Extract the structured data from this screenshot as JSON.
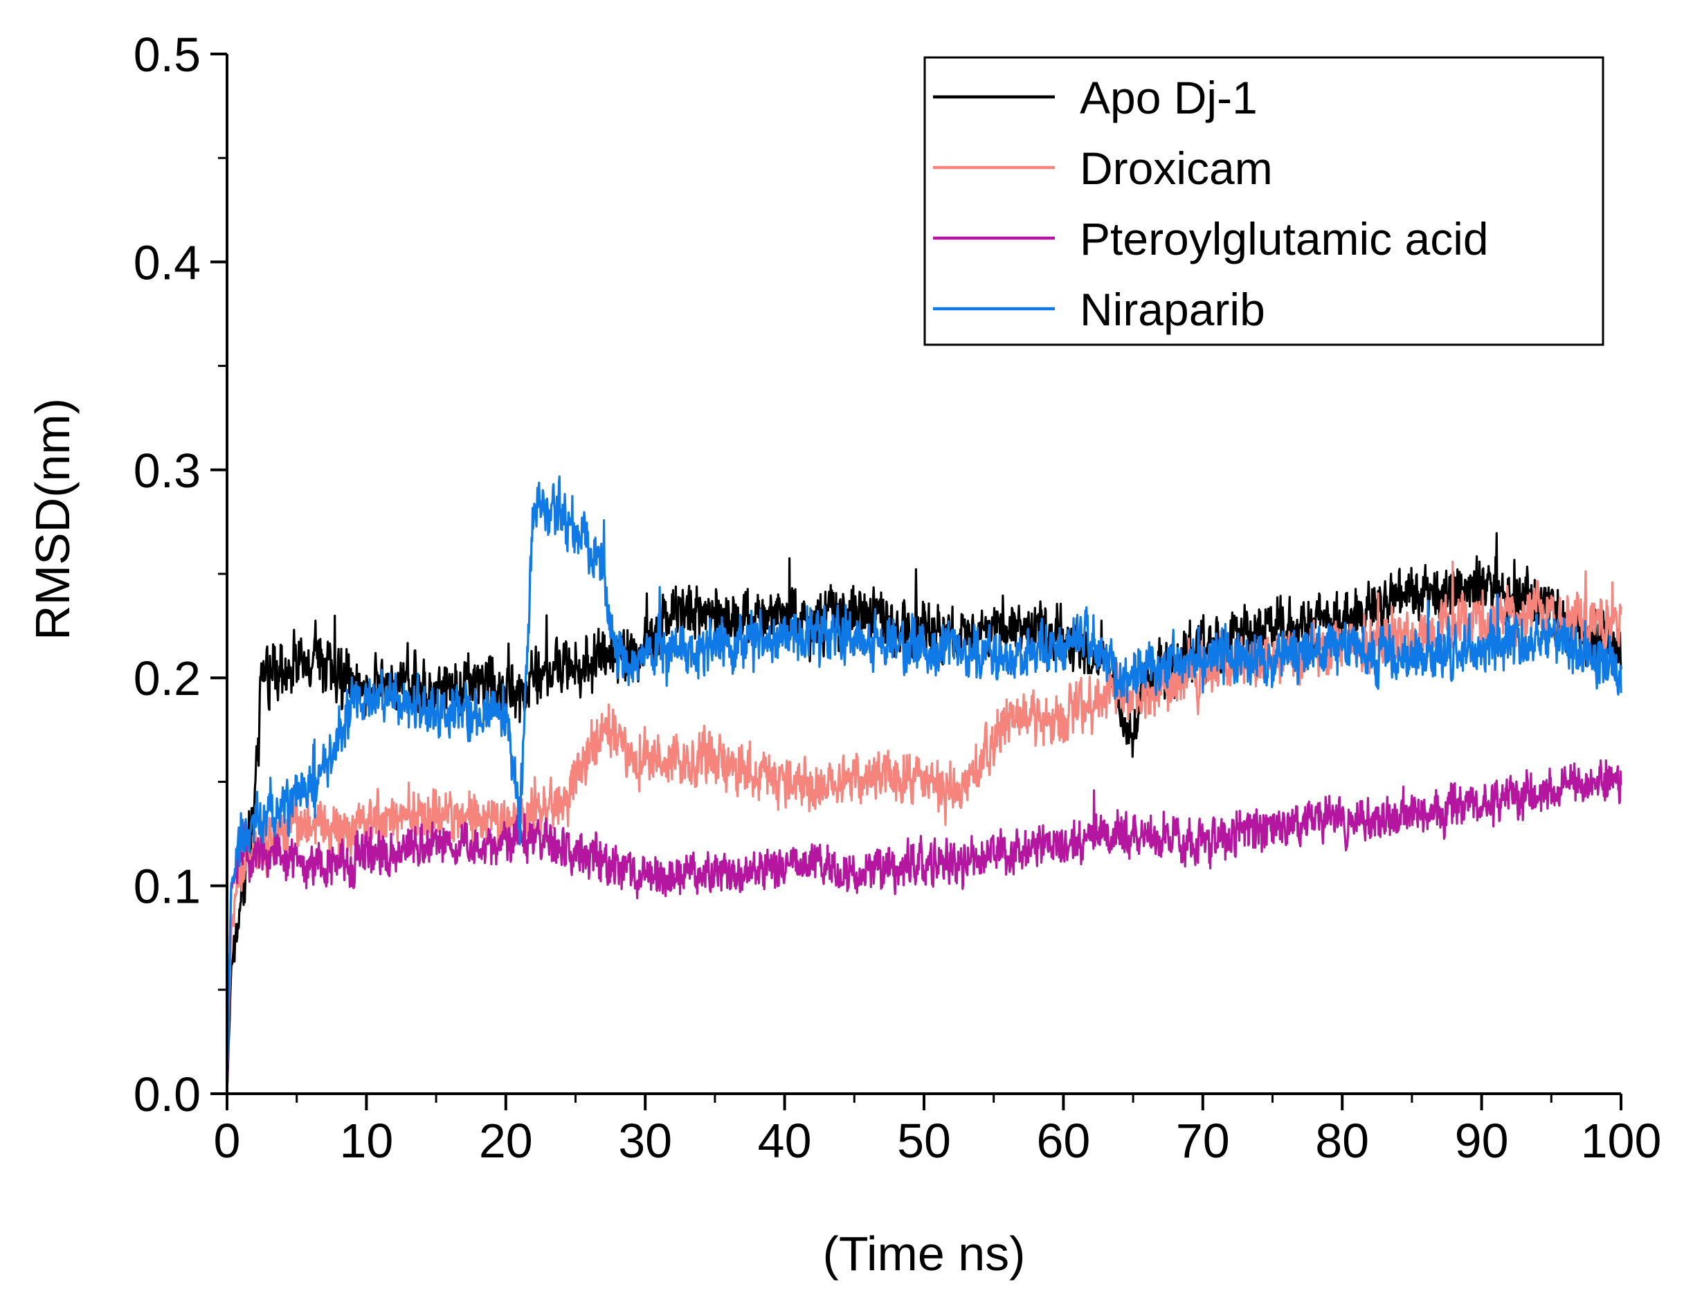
{
  "chart_data": {
    "type": "line",
    "title": "",
    "xlabel": "(Time ns)",
    "ylabel": "RMSD(nm)",
    "xlim": [
      0,
      100
    ],
    "ylim": [
      0,
      0.5
    ],
    "x_ticks": [
      "0",
      "10",
      "20",
      "30",
      "40",
      "50",
      "60",
      "70",
      "80",
      "90",
      "100"
    ],
    "y_ticks": [
      "0.0",
      "0.1",
      "0.2",
      "0.3",
      "0.4",
      "0.5"
    ],
    "legend_position": "top-right",
    "grid": false,
    "series": [
      {
        "name": "Apo Dj-1",
        "color": "#000000",
        "noise": 0.014,
        "points": [
          [
            0,
            0.0
          ],
          [
            0.3,
            0.06
          ],
          [
            1,
            0.095
          ],
          [
            2,
            0.14
          ],
          [
            2.5,
            0.2
          ],
          [
            4,
            0.205
          ],
          [
            6,
            0.21
          ],
          [
            8,
            0.2
          ],
          [
            10,
            0.195
          ],
          [
            12,
            0.2
          ],
          [
            15,
            0.195
          ],
          [
            18,
            0.2
          ],
          [
            20,
            0.195
          ],
          [
            21,
            0.19
          ],
          [
            22,
            0.2
          ],
          [
            25,
            0.205
          ],
          [
            27,
            0.21
          ],
          [
            30,
            0.215
          ],
          [
            32,
            0.235
          ],
          [
            35,
            0.23
          ],
          [
            40,
            0.228
          ],
          [
            42,
            0.225
          ],
          [
            45,
            0.232
          ],
          [
            48,
            0.225
          ],
          [
            50,
            0.22
          ],
          [
            55,
            0.225
          ],
          [
            60,
            0.22
          ],
          [
            63,
            0.21
          ],
          [
            65,
            0.17
          ],
          [
            66,
            0.2
          ],
          [
            70,
            0.215
          ],
          [
            75,
            0.225
          ],
          [
            80,
            0.228
          ],
          [
            85,
            0.24
          ],
          [
            90,
            0.245
          ],
          [
            93,
            0.24
          ],
          [
            96,
            0.225
          ],
          [
            100,
            0.215
          ]
        ]
      },
      {
        "name": "Droxicam",
        "color": "#f4847c",
        "noise": 0.013,
        "points": [
          [
            0,
            0.0
          ],
          [
            0.3,
            0.08
          ],
          [
            1,
            0.11
          ],
          [
            3,
            0.12
          ],
          [
            5,
            0.13
          ],
          [
            8,
            0.125
          ],
          [
            10,
            0.13
          ],
          [
            15,
            0.135
          ],
          [
            20,
            0.13
          ],
          [
            24,
            0.14
          ],
          [
            27,
            0.175
          ],
          [
            30,
            0.16
          ],
          [
            35,
            0.16
          ],
          [
            40,
            0.15
          ],
          [
            45,
            0.15
          ],
          [
            50,
            0.155
          ],
          [
            52,
            0.14
          ],
          [
            56,
            0.18
          ],
          [
            60,
            0.18
          ],
          [
            63,
            0.195
          ],
          [
            66,
            0.19
          ],
          [
            70,
            0.205
          ],
          [
            75,
            0.21
          ],
          [
            80,
            0.215
          ],
          [
            85,
            0.22
          ],
          [
            90,
            0.23
          ],
          [
            95,
            0.23
          ],
          [
            100,
            0.225
          ]
        ]
      },
      {
        "name": "Pteroylglutamic acid",
        "color": "#b5169f",
        "noise": 0.011,
        "points": [
          [
            0,
            0.0
          ],
          [
            0.3,
            0.1
          ],
          [
            1,
            0.115
          ],
          [
            3,
            0.115
          ],
          [
            5,
            0.11
          ],
          [
            8,
            0.11
          ],
          [
            10,
            0.115
          ],
          [
            15,
            0.12
          ],
          [
            20,
            0.12
          ],
          [
            22,
            0.125
          ],
          [
            25,
            0.115
          ],
          [
            30,
            0.105
          ],
          [
            35,
            0.105
          ],
          [
            40,
            0.11
          ],
          [
            45,
            0.105
          ],
          [
            50,
            0.11
          ],
          [
            55,
            0.115
          ],
          [
            60,
            0.12
          ],
          [
            65,
            0.125
          ],
          [
            70,
            0.12
          ],
          [
            75,
            0.13
          ],
          [
            80,
            0.13
          ],
          [
            85,
            0.135
          ],
          [
            90,
            0.14
          ],
          [
            95,
            0.145
          ],
          [
            100,
            0.15
          ]
        ]
      },
      {
        "name": "Niraparib",
        "color": "#0f7ae5",
        "noise": 0.013,
        "points": [
          [
            0,
            0.0
          ],
          [
            0.3,
            0.1
          ],
          [
            1,
            0.12
          ],
          [
            3,
            0.135
          ],
          [
            6,
            0.145
          ],
          [
            8,
            0.17
          ],
          [
            9,
            0.19
          ],
          [
            12,
            0.19
          ],
          [
            15,
            0.185
          ],
          [
            18,
            0.18
          ],
          [
            20,
            0.185
          ],
          [
            21,
            0.13
          ],
          [
            22,
            0.28
          ],
          [
            24,
            0.28
          ],
          [
            26,
            0.26
          ],
          [
            27,
            0.25
          ],
          [
            28,
            0.21
          ],
          [
            30,
            0.21
          ],
          [
            35,
            0.215
          ],
          [
            40,
            0.22
          ],
          [
            45,
            0.22
          ],
          [
            50,
            0.215
          ],
          [
            55,
            0.21
          ],
          [
            60,
            0.215
          ],
          [
            62,
            0.22
          ],
          [
            64,
            0.2
          ],
          [
            68,
            0.205
          ],
          [
            70,
            0.21
          ],
          [
            75,
            0.21
          ],
          [
            80,
            0.215
          ],
          [
            85,
            0.21
          ],
          [
            90,
            0.215
          ],
          [
            95,
            0.22
          ],
          [
            100,
            0.205
          ]
        ]
      }
    ]
  }
}
